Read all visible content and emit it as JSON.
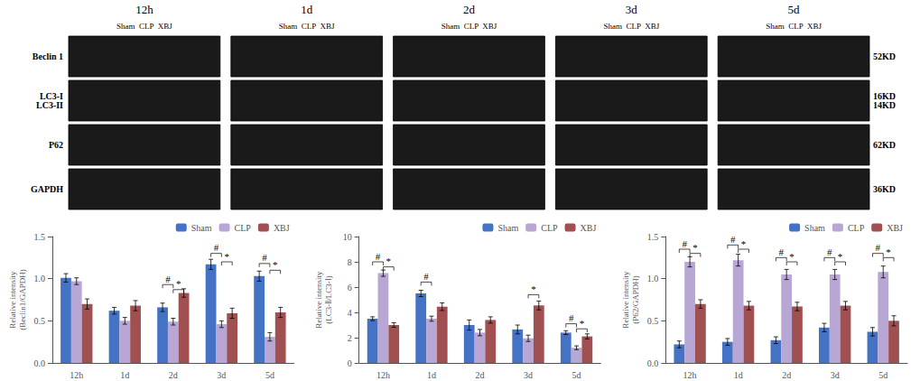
{
  "chart_data": [
    {
      "type": "blot",
      "categories": [
        "12h",
        "1d",
        "2d",
        "3d",
        "5d"
      ],
      "subtitle": "Sham  CLP  XBJ",
      "row_labels": [
        "Beclin 1",
        "LC3-I\nLC3-II",
        "P62",
        "GAPDH"
      ],
      "row_right_labels": [
        "52KD",
        "16KD\n14KD",
        "62KD",
        "36KD"
      ],
      "color": "#1a1a1a"
    },
    {
      "type": "bar",
      "ylabel": "Relative intensity\n(Beclin1/GAPDH)",
      "categories": [
        "12h",
        "1d",
        "2d",
        "3d",
        "5d"
      ],
      "series": [
        {
          "name": "Sham",
          "color": "#4472C4",
          "values": [
            1.01,
            0.62,
            0.66,
            1.17,
            1.03
          ],
          "errors": [
            0.05,
            0.04,
            0.05,
            0.06,
            0.06
          ]
        },
        {
          "name": "CLP",
          "color": "#B8A6D4",
          "values": [
            0.97,
            0.5,
            0.49,
            0.46,
            0.31
          ],
          "errors": [
            0.04,
            0.04,
            0.04,
            0.04,
            0.05
          ]
        },
        {
          "name": "XBJ",
          "color": "#A05050",
          "values": [
            0.7,
            0.68,
            0.83,
            0.59,
            0.6
          ],
          "errors": [
            0.06,
            0.06,
            0.05,
            0.06,
            0.06
          ]
        }
      ],
      "ylim": [
        0,
        1.5
      ],
      "yticks": [
        {
          "value": 0,
          "label": "0.0"
        },
        0.5,
        {
          "value": 1,
          "label": "1.0"
        },
        1.5
      ],
      "grid": false,
      "legend": "upper right",
      "annotations": [
        {
          "text": "#",
          "category": "2d",
          "from": "Sham",
          "to": "CLP",
          "y": 0.93
        },
        {
          "text": "*",
          "category": "2d",
          "from": "CLP",
          "to": "XBJ",
          "y": 0.87
        },
        {
          "text": "#",
          "category": "3d",
          "from": "Sham",
          "to": "CLP",
          "y": 1.3
        },
        {
          "text": "*",
          "category": "3d",
          "from": "CLP",
          "to": "XBJ",
          "y": 1.2
        },
        {
          "text": "#",
          "category": "5d",
          "from": "Sham",
          "to": "CLP",
          "y": 1.18
        },
        {
          "text": "*",
          "category": "5d",
          "from": "CLP",
          "to": "XBJ",
          "y": 1.1
        }
      ]
    },
    {
      "type": "bar",
      "ylabel": "Relative intensity\n(LC3-Ⅱ/LC3-Ⅰ)",
      "categories": [
        "12h",
        "1d",
        "2d",
        "3d",
        "5d"
      ],
      "series": [
        {
          "name": "Sham",
          "color": "#4472C4",
          "values": [
            3.5,
            5.5,
            3.0,
            2.65,
            2.4
          ],
          "errors": [
            0.15,
            0.25,
            0.4,
            0.35,
            0.15
          ]
        },
        {
          "name": "CLP",
          "color": "#B8A6D4",
          "values": [
            7.1,
            3.5,
            2.4,
            1.95,
            1.2
          ],
          "errors": [
            0.25,
            0.2,
            0.25,
            0.25,
            0.15
          ]
        },
        {
          "name": "XBJ",
          "color": "#A05050",
          "values": [
            3.0,
            4.45,
            3.4,
            4.55,
            2.1
          ],
          "errors": [
            0.18,
            0.3,
            0.25,
            0.35,
            0.2
          ]
        }
      ],
      "ylim": [
        0,
        10
      ],
      "yticks": [
        0,
        2,
        4,
        6,
        8,
        10
      ],
      "grid": false,
      "legend": "upper right",
      "annotations": [
        {
          "text": "#",
          "category": "12h",
          "from": "Sham",
          "to": "CLP",
          "y": 8.0
        },
        {
          "text": "*",
          "category": "12h",
          "from": "CLP",
          "to": "XBJ",
          "y": 7.6
        },
        {
          "text": "#",
          "category": "1d",
          "from": "Sham",
          "to": "CLP",
          "y": 6.4
        },
        {
          "text": "*",
          "category": "3d",
          "from": "CLP",
          "to": "XBJ",
          "y": 5.4
        },
        {
          "text": "#",
          "category": "5d",
          "from": "Sham",
          "to": "CLP",
          "y": 3.1
        },
        {
          "text": "*",
          "category": "5d",
          "from": "CLP",
          "to": "XBJ",
          "y": 2.7
        }
      ]
    },
    {
      "type": "bar",
      "ylabel": "Relative intensity\n(P62/GAPDH)",
      "categories": [
        "12h",
        "1d",
        "2d",
        "3d",
        "5d"
      ],
      "series": [
        {
          "name": "Sham",
          "color": "#4472C4",
          "values": [
            0.22,
            0.25,
            0.27,
            0.42,
            0.37
          ],
          "errors": [
            0.04,
            0.04,
            0.04,
            0.05,
            0.05
          ]
        },
        {
          "name": "CLP",
          "color": "#B8A6D4",
          "values": [
            1.2,
            1.22,
            1.05,
            1.05,
            1.08
          ],
          "errors": [
            0.06,
            0.07,
            0.06,
            0.06,
            0.07
          ]
        },
        {
          "name": "XBJ",
          "color": "#A05050",
          "values": [
            0.7,
            0.68,
            0.67,
            0.68,
            0.5
          ],
          "errors": [
            0.05,
            0.05,
            0.05,
            0.05,
            0.06
          ]
        }
      ],
      "ylim": [
        0,
        1.5
      ],
      "yticks": [
        {
          "value": 0,
          "label": "0.0"
        },
        0.5,
        {
          "value": 1,
          "label": "1.0"
        },
        1.5
      ],
      "grid": false,
      "legend": "upper right",
      "annotations": [
        {
          "text": "#",
          "category": "12h",
          "from": "Sham",
          "to": "CLP",
          "y": 1.35
        },
        {
          "text": "*",
          "category": "12h",
          "from": "CLP",
          "to": "XBJ",
          "y": 1.3
        },
        {
          "text": "#",
          "category": "1d",
          "from": "Sham",
          "to": "CLP",
          "y": 1.4
        },
        {
          "text": "*",
          "category": "1d",
          "from": "CLP",
          "to": "XBJ",
          "y": 1.35
        },
        {
          "text": "#",
          "category": "2d",
          "from": "Sham",
          "to": "CLP",
          "y": 1.25
        },
        {
          "text": "*",
          "category": "2d",
          "from": "CLP",
          "to": "XBJ",
          "y": 1.2
        },
        {
          "text": "#",
          "category": "3d",
          "from": "Sham",
          "to": "CLP",
          "y": 1.25
        },
        {
          "text": "*",
          "category": "3d",
          "from": "CLP",
          "to": "XBJ",
          "y": 1.2
        },
        {
          "text": "#",
          "category": "5d",
          "from": "Sham",
          "to": "CLP",
          "y": 1.3
        },
        {
          "text": "*",
          "category": "5d",
          "from": "CLP",
          "to": "XBJ",
          "y": 1.25
        }
      ]
    }
  ]
}
